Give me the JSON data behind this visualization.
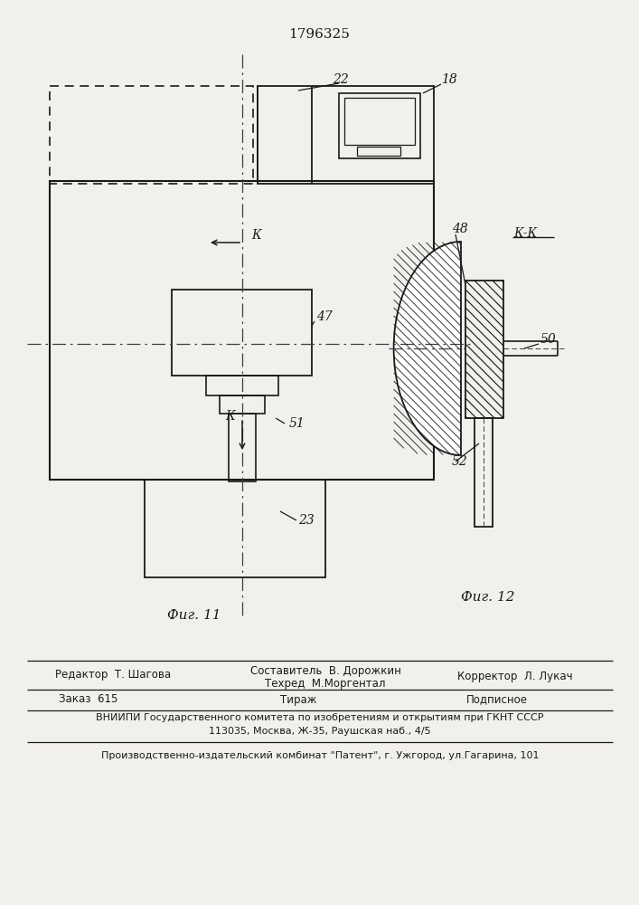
{
  "patent_number": "1796325",
  "fig11_label": "Фиг. 11",
  "fig12_label": "Фиг. 12",
  "bg_color": "#f2f0ed",
  "line_color": "#1a1a1a",
  "editor_line1": "Редактор  Т. Шагова",
  "editor_line2": "Составитель  В. Дорожкин",
  "editor_line3": "Техред  М.Моргентал",
  "corrector": "Корректор  Л. Лукач",
  "order": "Заказ  615",
  "tirazh": "Тираж",
  "podpisnoe": "Подписное",
  "vniip1": "ВНИИПИ Государственного комитета по изобретениям и открытиям при ГКНТ СССР",
  "vniip2": "113035, Москва, Ж-35, Раушская наб., 4/5",
  "proizv": "Производственно-издательский комбинат \"Патент\", г. Ужгород, ул.Гагарина, 101"
}
